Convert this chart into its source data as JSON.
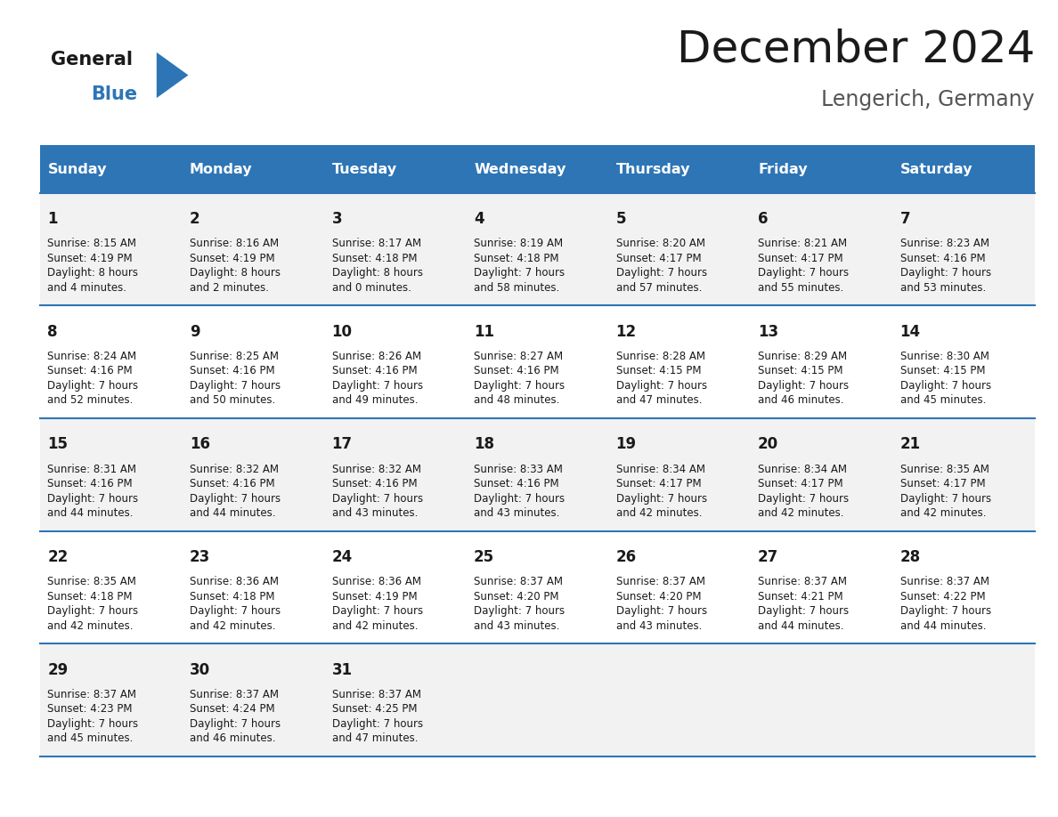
{
  "title": "December 2024",
  "subtitle": "Lengerich, Germany",
  "header_bg": "#2E75B6",
  "header_text_color": "#FFFFFF",
  "row_bg_odd": "#F2F2F2",
  "row_bg_even": "#FFFFFF",
  "separator_color": "#2E75B6",
  "day_names": [
    "Sunday",
    "Monday",
    "Tuesday",
    "Wednesday",
    "Thursday",
    "Friday",
    "Saturday"
  ],
  "calendar": [
    [
      {
        "day": 1,
        "sunrise": "8:15 AM",
        "sunset": "4:19 PM",
        "daylight": "8 hours\nand 4 minutes."
      },
      {
        "day": 2,
        "sunrise": "8:16 AM",
        "sunset": "4:19 PM",
        "daylight": "8 hours\nand 2 minutes."
      },
      {
        "day": 3,
        "sunrise": "8:17 AM",
        "sunset": "4:18 PM",
        "daylight": "8 hours\nand 0 minutes."
      },
      {
        "day": 4,
        "sunrise": "8:19 AM",
        "sunset": "4:18 PM",
        "daylight": "7 hours\nand 58 minutes."
      },
      {
        "day": 5,
        "sunrise": "8:20 AM",
        "sunset": "4:17 PM",
        "daylight": "7 hours\nand 57 minutes."
      },
      {
        "day": 6,
        "sunrise": "8:21 AM",
        "sunset": "4:17 PM",
        "daylight": "7 hours\nand 55 minutes."
      },
      {
        "day": 7,
        "sunrise": "8:23 AM",
        "sunset": "4:16 PM",
        "daylight": "7 hours\nand 53 minutes."
      }
    ],
    [
      {
        "day": 8,
        "sunrise": "8:24 AM",
        "sunset": "4:16 PM",
        "daylight": "7 hours\nand 52 minutes."
      },
      {
        "day": 9,
        "sunrise": "8:25 AM",
        "sunset": "4:16 PM",
        "daylight": "7 hours\nand 50 minutes."
      },
      {
        "day": 10,
        "sunrise": "8:26 AM",
        "sunset": "4:16 PM",
        "daylight": "7 hours\nand 49 minutes."
      },
      {
        "day": 11,
        "sunrise": "8:27 AM",
        "sunset": "4:16 PM",
        "daylight": "7 hours\nand 48 minutes."
      },
      {
        "day": 12,
        "sunrise": "8:28 AM",
        "sunset": "4:15 PM",
        "daylight": "7 hours\nand 47 minutes."
      },
      {
        "day": 13,
        "sunrise": "8:29 AM",
        "sunset": "4:15 PM",
        "daylight": "7 hours\nand 46 minutes."
      },
      {
        "day": 14,
        "sunrise": "8:30 AM",
        "sunset": "4:15 PM",
        "daylight": "7 hours\nand 45 minutes."
      }
    ],
    [
      {
        "day": 15,
        "sunrise": "8:31 AM",
        "sunset": "4:16 PM",
        "daylight": "7 hours\nand 44 minutes."
      },
      {
        "day": 16,
        "sunrise": "8:32 AM",
        "sunset": "4:16 PM",
        "daylight": "7 hours\nand 44 minutes."
      },
      {
        "day": 17,
        "sunrise": "8:32 AM",
        "sunset": "4:16 PM",
        "daylight": "7 hours\nand 43 minutes."
      },
      {
        "day": 18,
        "sunrise": "8:33 AM",
        "sunset": "4:16 PM",
        "daylight": "7 hours\nand 43 minutes."
      },
      {
        "day": 19,
        "sunrise": "8:34 AM",
        "sunset": "4:17 PM",
        "daylight": "7 hours\nand 42 minutes."
      },
      {
        "day": 20,
        "sunrise": "8:34 AM",
        "sunset": "4:17 PM",
        "daylight": "7 hours\nand 42 minutes."
      },
      {
        "day": 21,
        "sunrise": "8:35 AM",
        "sunset": "4:17 PM",
        "daylight": "7 hours\nand 42 minutes."
      }
    ],
    [
      {
        "day": 22,
        "sunrise": "8:35 AM",
        "sunset": "4:18 PM",
        "daylight": "7 hours\nand 42 minutes."
      },
      {
        "day": 23,
        "sunrise": "8:36 AM",
        "sunset": "4:18 PM",
        "daylight": "7 hours\nand 42 minutes."
      },
      {
        "day": 24,
        "sunrise": "8:36 AM",
        "sunset": "4:19 PM",
        "daylight": "7 hours\nand 42 minutes."
      },
      {
        "day": 25,
        "sunrise": "8:37 AM",
        "sunset": "4:20 PM",
        "daylight": "7 hours\nand 43 minutes."
      },
      {
        "day": 26,
        "sunrise": "8:37 AM",
        "sunset": "4:20 PM",
        "daylight": "7 hours\nand 43 minutes."
      },
      {
        "day": 27,
        "sunrise": "8:37 AM",
        "sunset": "4:21 PM",
        "daylight": "7 hours\nand 44 minutes."
      },
      {
        "day": 28,
        "sunrise": "8:37 AM",
        "sunset": "4:22 PM",
        "daylight": "7 hours\nand 44 minutes."
      }
    ],
    [
      {
        "day": 29,
        "sunrise": "8:37 AM",
        "sunset": "4:23 PM",
        "daylight": "7 hours\nand 45 minutes."
      },
      {
        "day": 30,
        "sunrise": "8:37 AM",
        "sunset": "4:24 PM",
        "daylight": "7 hours\nand 46 minutes."
      },
      {
        "day": 31,
        "sunrise": "8:37 AM",
        "sunset": "4:25 PM",
        "daylight": "7 hours\nand 47 minutes."
      },
      null,
      null,
      null,
      null
    ]
  ],
  "logo_general_color": "#1A1A1A",
  "logo_blue_color": "#2E75B6",
  "fig_width": 11.88,
  "fig_height": 9.18,
  "dpi": 100
}
